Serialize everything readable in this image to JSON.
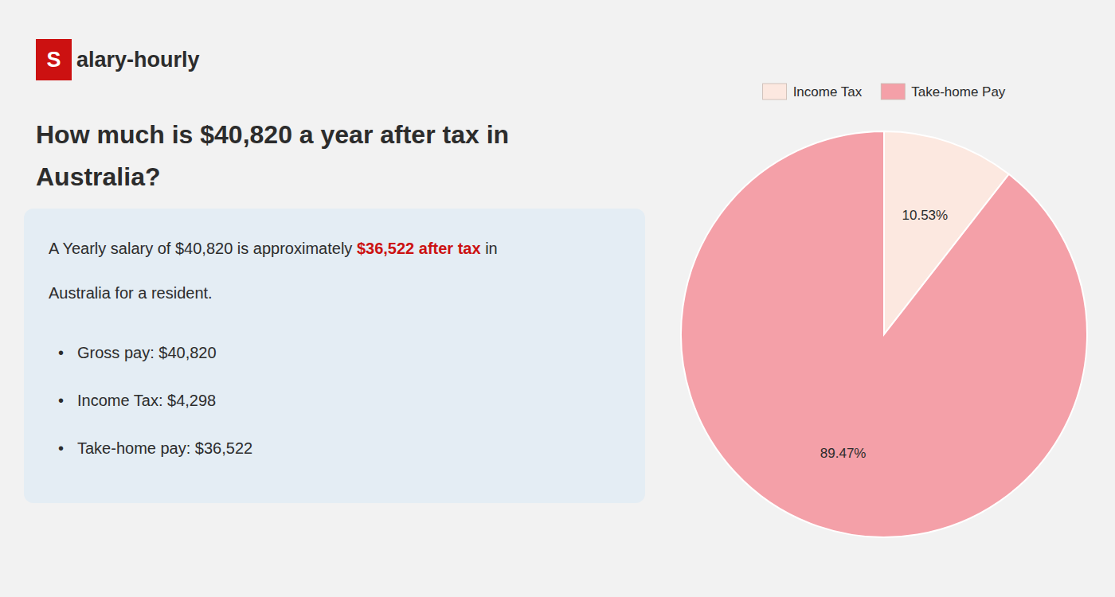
{
  "chart_data": {
    "type": "pie",
    "title": [
      "How much is $40,820 a year after tax in",
      "Australia?"
    ],
    "annotations": [
      {
        "text": "S",
        "color": "#cc1111"
      },
      {
        "text": "alary-hourly"
      },
      {
        "text": "A Yearly salary of $40,820 is approximately "
      },
      {
        "text": "$36,522 after tax",
        "color": "#cc1111"
      },
      {
        "text": " in"
      },
      {
        "text": "Australia for a resident."
      },
      {
        "text": "•"
      },
      {
        "text": "Gross pay: $40,820"
      },
      {
        "text": "•"
      },
      {
        "text": "Income Tax: $4,298"
      },
      {
        "text": "•"
      },
      {
        "text": "Take-home pay: $36,522"
      }
    ],
    "categories": [
      "Income Tax",
      "Take-home Pay"
    ],
    "values": [
      10.53,
      89.47
    ],
    "value_labels": [
      "10.53%",
      "89.47%"
    ],
    "colors": [
      "#fce8e0",
      "#f4a0a8"
    ],
    "data_labels": true,
    "legend": "top"
  }
}
